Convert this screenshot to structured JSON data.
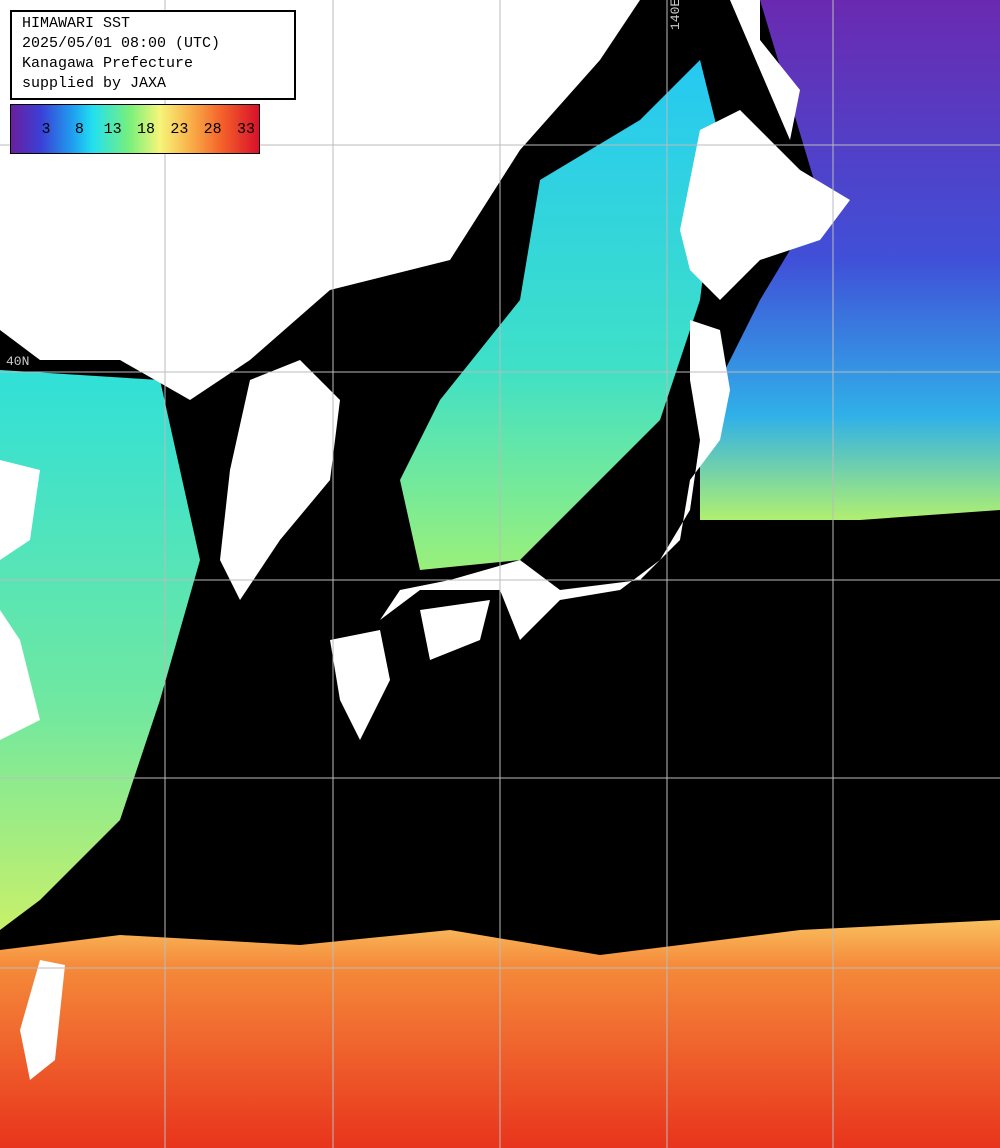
{
  "header": {
    "lines": [
      "HIMAWARI SST",
      "2025/05/01 08:00 (UTC)",
      "Kanagawa Prefecture",
      "supplied by JAXA"
    ]
  },
  "colorbar": {
    "ticks": [
      3,
      8,
      13,
      18,
      23,
      28,
      33
    ]
  },
  "grid_labels": {
    "longitude": "140E",
    "latitude": "40N"
  }
}
